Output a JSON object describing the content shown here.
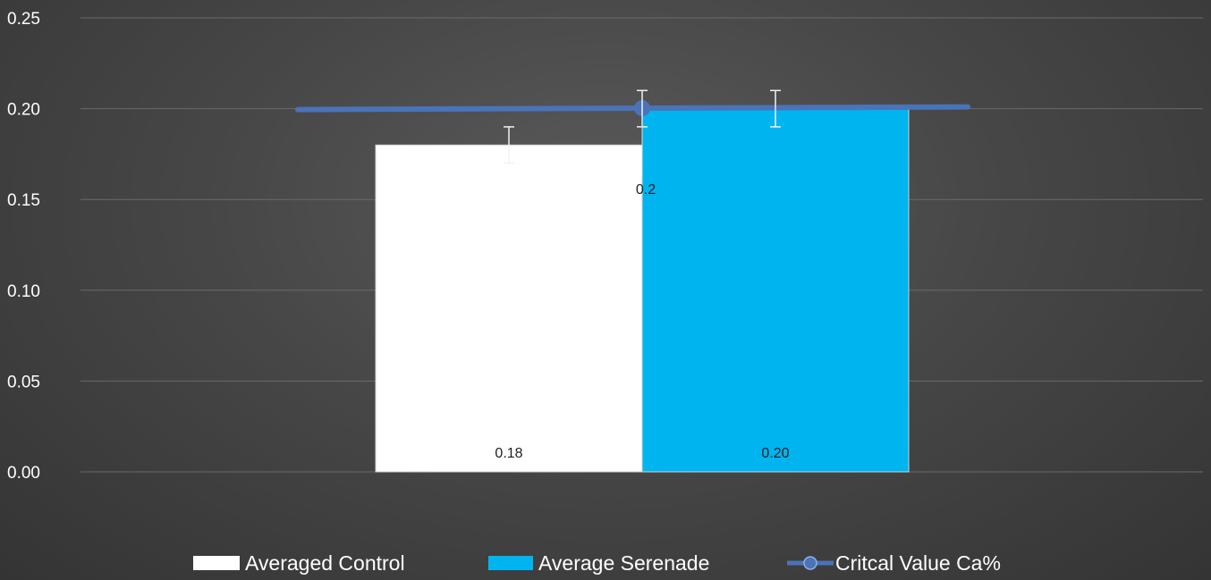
{
  "chart_data": {
    "type": "bar",
    "categories": [
      "Averaged Control",
      "Average Serenade"
    ],
    "series": [
      {
        "name": "Averaged Control",
        "kind": "bar",
        "value": 0.18,
        "error": 0.01,
        "color": "#ffffff",
        "data_label": "0.18"
      },
      {
        "name": "Average Serenade",
        "kind": "bar",
        "value": 0.2,
        "error": 0.01,
        "color": "#00b4f0",
        "data_label": "0.20"
      },
      {
        "name": "Critcal Value Ca%",
        "legend_label": "Critcal Value Ca%",
        "kind": "line",
        "value": 0.2,
        "error": 0.01,
        "color": "#4a73b8",
        "data_label": "0.2"
      }
    ],
    "ylim": [
      0,
      0.25
    ],
    "y_ticks": [
      "0.00",
      "0.05",
      "0.10",
      "0.15",
      "0.20",
      "0.25"
    ],
    "y_tick_values": [
      0,
      0.05,
      0.1,
      0.15,
      0.2,
      0.25
    ],
    "grid": true,
    "legend_position": "bottom",
    "title": "",
    "xlabel": "",
    "ylabel": ""
  }
}
